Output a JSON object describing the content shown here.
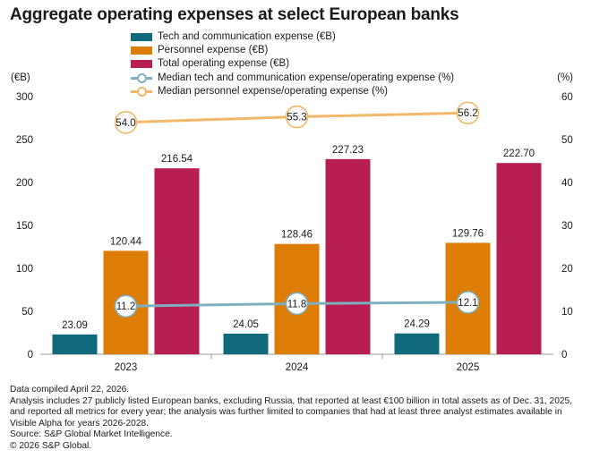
{
  "title": "Aggregate operating expenses at select European banks",
  "legend": [
    {
      "label": "Tech and communication expense (€B)",
      "kind": "bar",
      "color": "#116a7c"
    },
    {
      "label": "Personnel expense (€B)",
      "kind": "bar",
      "color": "#dd7d05"
    },
    {
      "label": "Total operating expense (€B)",
      "kind": "bar",
      "color": "#b81e4f"
    },
    {
      "label": "Median tech and communication expense/operating expense (%)",
      "kind": "line",
      "color": "#7fb0bf"
    },
    {
      "label": "Median personnel expense/operating expense (%)",
      "kind": "line",
      "color": "#f2b768"
    }
  ],
  "chart_data": {
    "type": "bar",
    "categories": [
      "2023",
      "2024",
      "2025"
    ],
    "series": [
      {
        "name": "Tech and communication expense (€B)",
        "values": [
          23.09,
          24.05,
          24.29
        ],
        "labels": [
          "23.09",
          "24.05",
          "24.29"
        ],
        "color": "#116a7c",
        "axis": "left"
      },
      {
        "name": "Personnel expense (€B)",
        "values": [
          120.44,
          128.46,
          129.76
        ],
        "labels": [
          "120.44",
          "128.46",
          "129.76"
        ],
        "color": "#dd7d05",
        "axis": "left"
      },
      {
        "name": "Total operating expense (€B)",
        "values": [
          216.54,
          227.23,
          222.7
        ],
        "labels": [
          "216.54",
          "227.23",
          "222.70"
        ],
        "color": "#b81e4f",
        "axis": "left"
      }
    ],
    "line_series": [
      {
        "name": "Median tech and communication expense/operating expense (%)",
        "values": [
          11.2,
          11.8,
          12.1
        ],
        "labels": [
          "11.2",
          "11.8",
          "12.1"
        ],
        "color": "#7fb0bf",
        "axis": "right"
      },
      {
        "name": "Median personnel expense/operating expense (%)",
        "values": [
          54.0,
          55.3,
          56.2
        ],
        "labels": [
          "54.0",
          "55.3",
          "56.2"
        ],
        "color": "#f2b768",
        "axis": "right"
      }
    ],
    "y_left": {
      "label": "(€B)",
      "lim": [
        0,
        300
      ],
      "ticks": [
        "0",
        "50",
        "100",
        "150",
        "200",
        "250",
        "300"
      ]
    },
    "y_right": {
      "label": "(%)",
      "lim": [
        0,
        60
      ],
      "ticks": [
        "0",
        "10",
        "20",
        "30",
        "40",
        "50",
        "60"
      ]
    },
    "grid": false
  },
  "notes": [
    "Data compiled April 22, 2026.",
    "Analysis includes 27 publicly listed European banks, excluding Russia, that reported at least €100 billion in total assets as of Dec. 31, 2025, and reported all metrics for every year; the analysis was further limited to companies that had at least three analyst estimates available in Visible Alpha for years 2026-2028.",
    "Source: S&P Global Market Intelligence.",
    "© 2026 S&P Global."
  ]
}
